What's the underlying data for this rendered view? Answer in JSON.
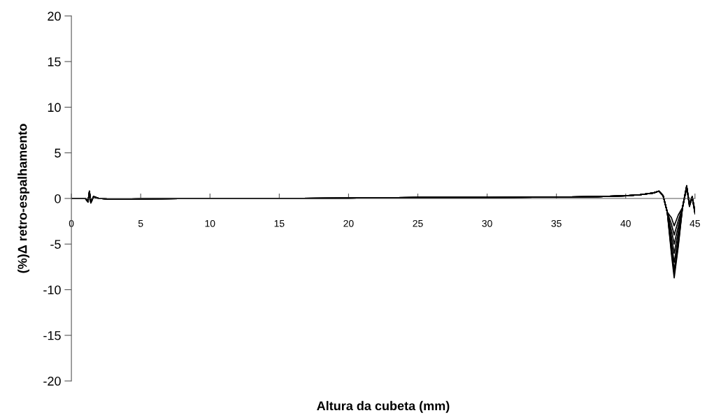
{
  "chart_data": {
    "type": "line",
    "xlabel": "Altura da cubeta (mm)",
    "ylabel": "(%)Δ retro-espalhamento",
    "x": [
      0,
      0.5,
      1.0,
      1.2,
      1.3,
      1.4,
      1.6,
      2,
      3,
      5,
      10,
      15,
      20,
      25,
      30,
      35,
      38,
      40,
      41,
      42,
      42.4,
      42.7,
      43.0,
      43.3,
      43.5,
      43.8,
      44.1,
      44.4,
      44.6,
      44.8,
      45
    ],
    "series": [
      {
        "color": "#000000",
        "values": [
          0,
          0,
          0,
          -0.2,
          0.6,
          -0.3,
          0.2,
          0,
          -0.1,
          -0.05,
          0,
          0,
          0.05,
          0.1,
          0.1,
          0.15,
          0.2,
          0.3,
          0.4,
          0.6,
          0.8,
          0.3,
          -1.5,
          -2.1,
          -3,
          -1.8,
          -1.0,
          1.3,
          -0.5,
          0.2,
          -1.5
        ]
      },
      {
        "color": "#000000",
        "values": [
          0,
          0,
          0,
          -0.3,
          0.7,
          -0.4,
          0.2,
          0,
          -0.1,
          -0.05,
          0,
          0,
          0.05,
          0.1,
          0.1,
          0.15,
          0.2,
          0.3,
          0.4,
          0.6,
          0.8,
          0.3,
          -1.5,
          -2.8,
          -4,
          -2.4,
          -1.0,
          1.2,
          -0.6,
          0.1,
          -1.4
        ]
      },
      {
        "color": "#000000",
        "values": [
          0,
          0,
          0,
          -0.3,
          0.8,
          -0.4,
          0.2,
          0,
          -0.1,
          -0.05,
          0,
          0,
          0.05,
          0.1,
          0.1,
          0.15,
          0.2,
          0.3,
          0.4,
          0.6,
          0.8,
          0.3,
          -1.5,
          -3.5,
          -5,
          -3,
          -1.0,
          1.3,
          -0.7,
          0.2,
          -1.6
        ]
      },
      {
        "color": "#000000",
        "values": [
          0,
          0,
          0,
          -0.4,
          0.8,
          -0.5,
          0.2,
          0,
          -0.1,
          -0.05,
          0,
          0,
          0.05,
          0.1,
          0.1,
          0.15,
          0.2,
          0.3,
          0.4,
          0.6,
          0.8,
          0.3,
          -1.5,
          -4.2,
          -6,
          -3.6,
          -1.0,
          1.4,
          -0.8,
          0.1,
          -1.5
        ]
      },
      {
        "color": "#000000",
        "values": [
          0,
          0,
          0,
          -0.3,
          0.7,
          -0.4,
          0.2,
          0,
          -0.1,
          -0.05,
          0,
          0,
          0.05,
          0.1,
          0.1,
          0.15,
          0.2,
          0.3,
          0.4,
          0.6,
          0.8,
          0.3,
          -1.5,
          -4.9,
          -7,
          -4.2,
          -1.0,
          1.3,
          -0.6,
          0.2,
          -1.3
        ]
      },
      {
        "color": "#000000",
        "values": [
          0,
          0,
          0,
          -0.4,
          0.8,
          -0.5,
          0.2,
          0,
          -0.1,
          -0.05,
          0,
          0,
          0.05,
          0.1,
          0.1,
          0.15,
          0.2,
          0.3,
          0.4,
          0.6,
          0.8,
          0.3,
          -1.5,
          -5.5,
          -7.8,
          -4.7,
          -1.0,
          1.2,
          -0.7,
          0.1,
          -1.6
        ]
      },
      {
        "color": "#000000",
        "values": [
          0,
          0,
          0,
          -0.3,
          0.8,
          -0.4,
          0.2,
          0,
          -0.1,
          -0.05,
          0,
          0,
          0.05,
          0.1,
          0.1,
          0.15,
          0.2,
          0.3,
          0.4,
          0.6,
          0.8,
          0.3,
          -1.5,
          -5.8,
          -8.3,
          -5,
          -1.0,
          1.3,
          -0.8,
          0.2,
          -1.5
        ]
      },
      {
        "color": "#000000",
        "values": [
          0,
          0,
          0,
          -0.4,
          0.8,
          -0.5,
          0.2,
          0,
          -0.1,
          -0.05,
          0,
          0,
          0.05,
          0.1,
          0.1,
          0.15,
          0.2,
          0.3,
          0.4,
          0.6,
          0.8,
          0.3,
          -1.5,
          -6.1,
          -8.7,
          -5.2,
          -1.0,
          1.4,
          -0.9,
          0.1,
          -1.7
        ]
      }
    ],
    "xlim": [
      0,
      45
    ],
    "ylim": [
      -20,
      20
    ],
    "xticks": [
      0,
      5,
      10,
      15,
      20,
      25,
      30,
      35,
      40,
      45
    ],
    "yticks": [
      -20,
      -15,
      -10,
      -5,
      0,
      5,
      10,
      15,
      20
    ],
    "grid": false,
    "marker": "none",
    "line_style": "solid"
  }
}
